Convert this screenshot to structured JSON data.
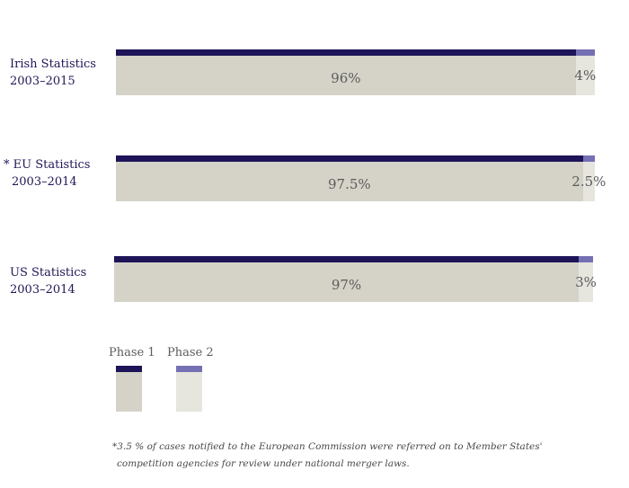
{
  "colors": {
    "phase1_top": "#1e1458",
    "phase2_top": "#7570b3",
    "phase1_body": "#d5d3c8",
    "phase2_body": "#e6e5de"
  },
  "chart_data": {
    "type": "bar",
    "orientation": "horizontal-stacked",
    "categories": [
      [
        "Irish Statistics",
        "2003–2015"
      ],
      [
        "* EU Statistics",
        "2003–2014"
      ],
      [
        "US Statistics",
        "2003–2014"
      ]
    ],
    "series": [
      {
        "name": "Phase 1",
        "values": [
          96,
          97.5,
          97
        ],
        "labels": [
          "96%",
          "97.5%",
          "97%"
        ]
      },
      {
        "name": "Phase 2",
        "values": [
          4,
          2.5,
          3
        ],
        "labels": [
          "4%",
          "2.5%",
          "3%"
        ]
      }
    ],
    "xlim": [
      0,
      100
    ],
    "legend": "bottom-left",
    "grid": false
  },
  "footnote": {
    "line1": "*3.5 % of cases notified to the European Commission were referred on to Member States'",
    "line2": "competition agencies for review under national merger laws."
  }
}
